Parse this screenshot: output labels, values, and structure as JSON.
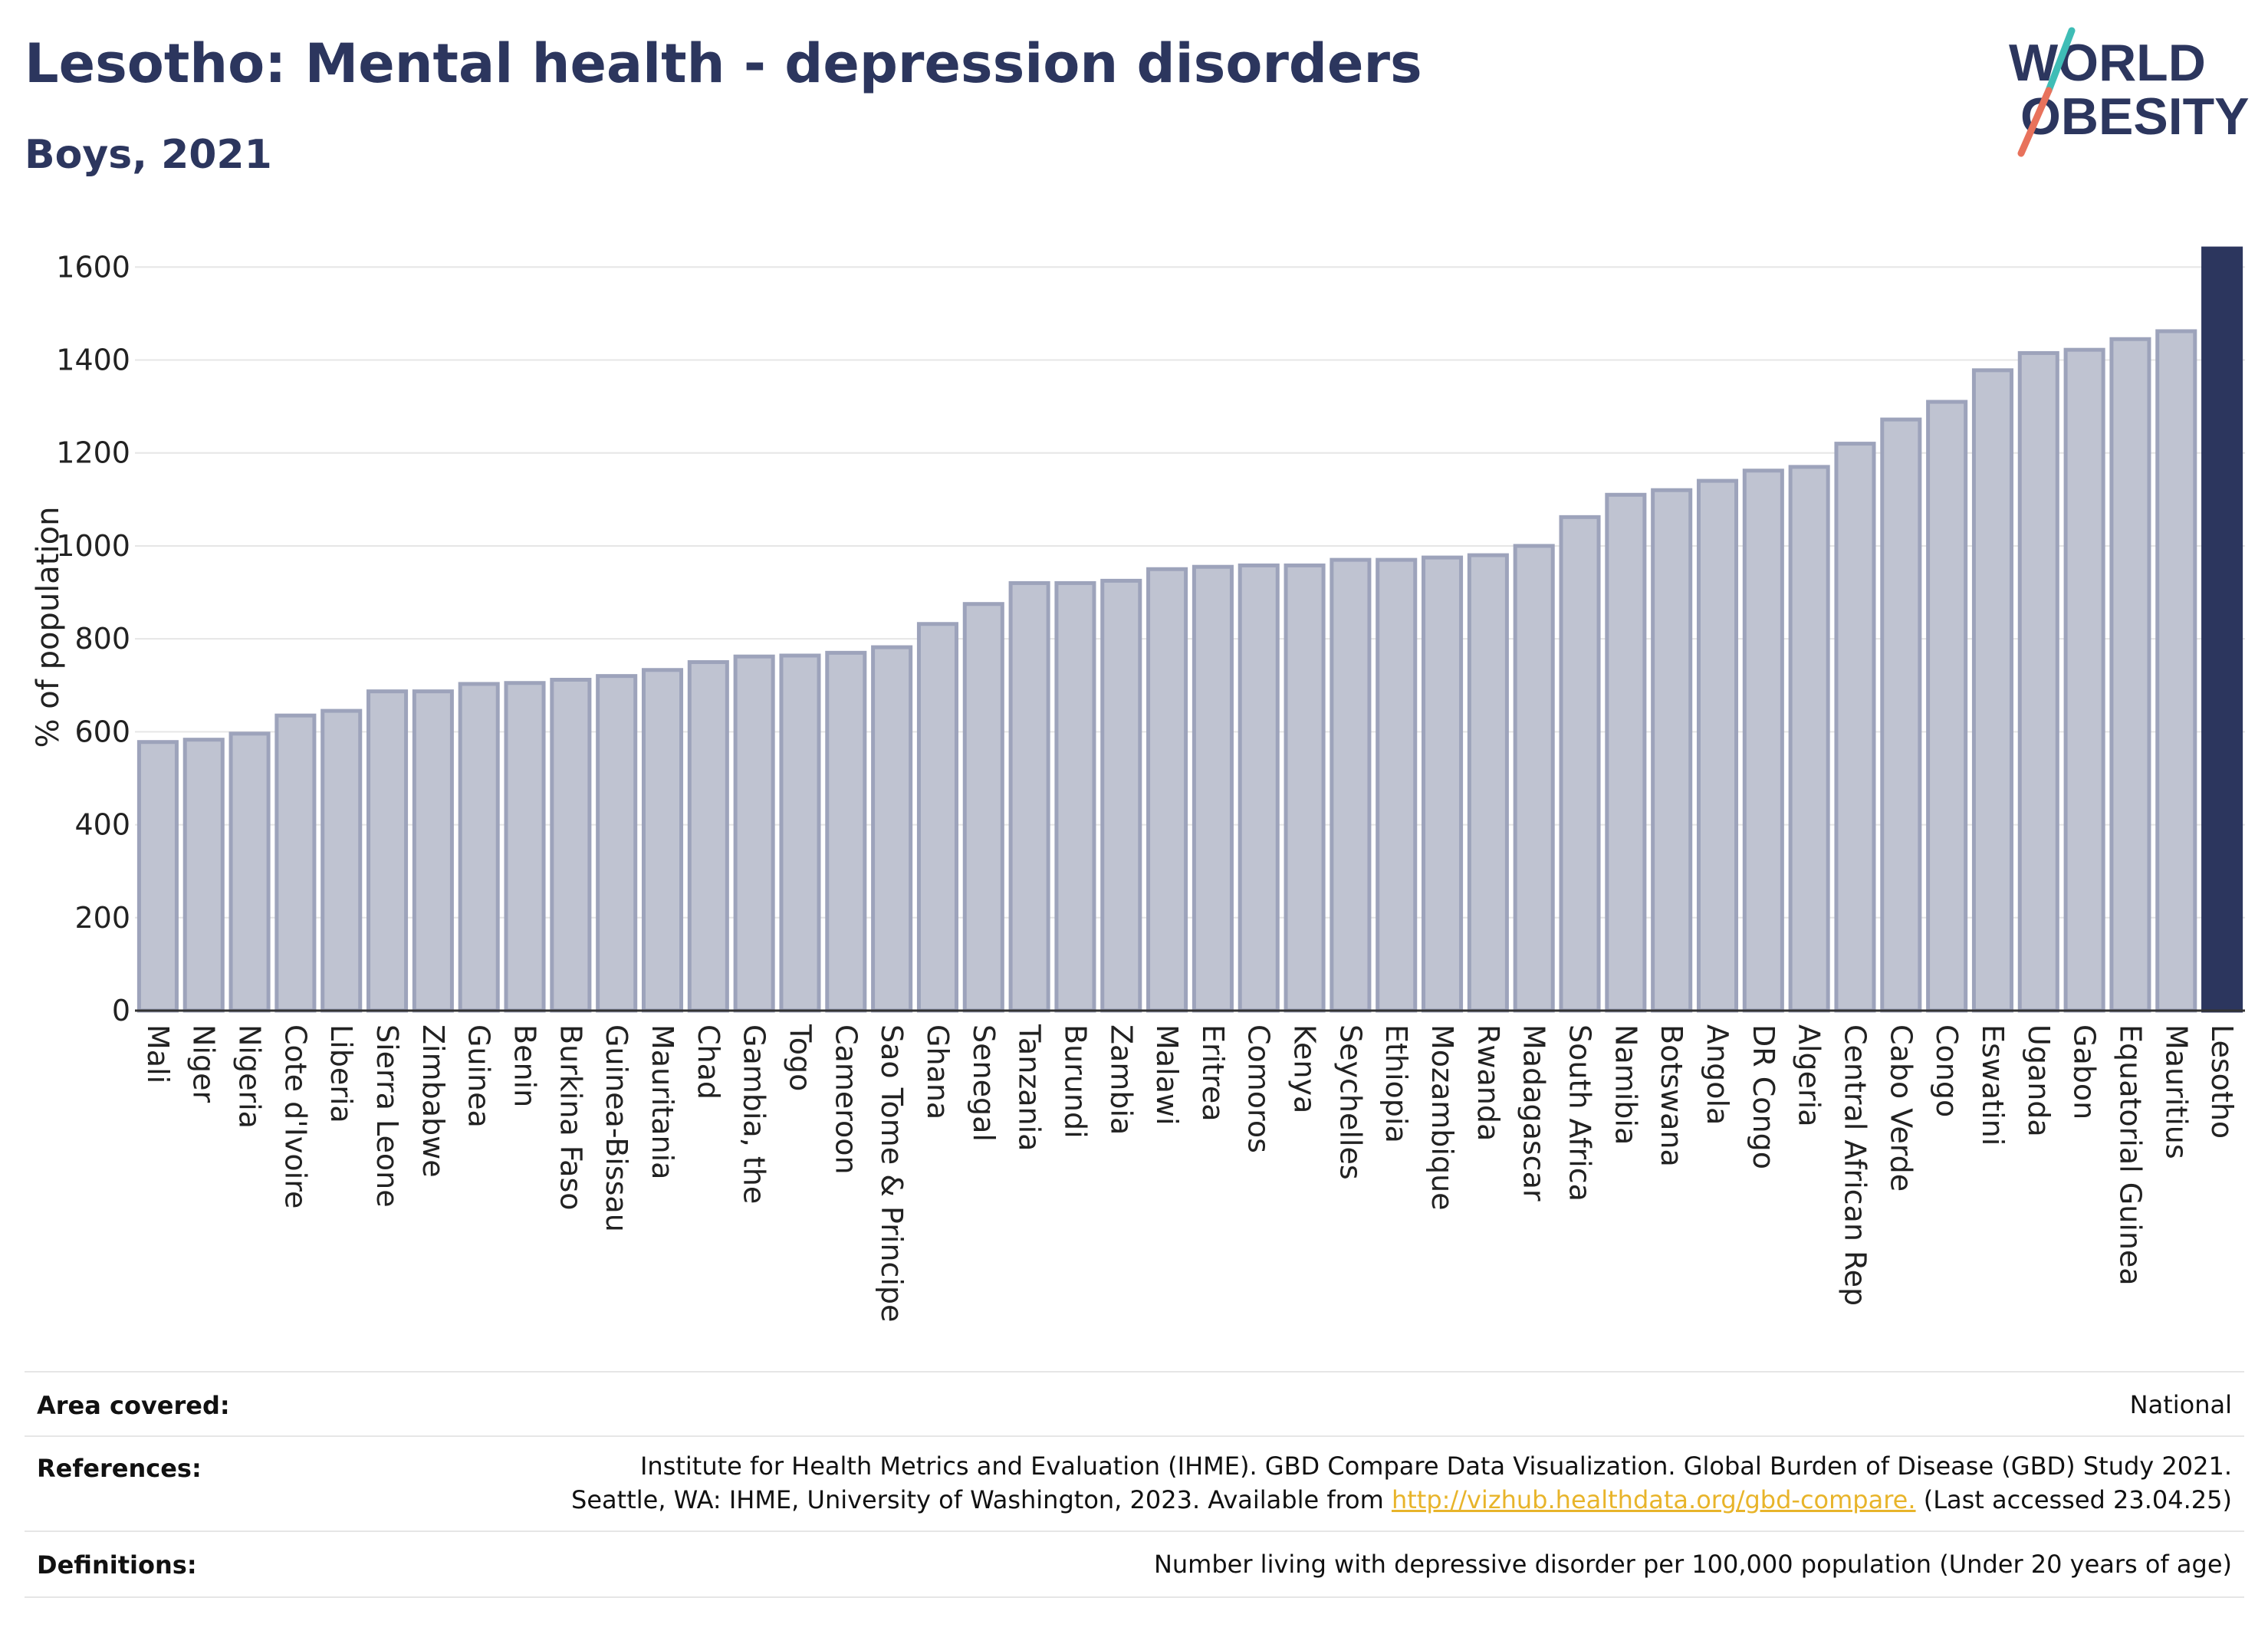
{
  "header": {
    "title": "Lesotho: Mental health - depression disorders",
    "subtitle": "Boys, 2021"
  },
  "logo": {
    "line1": "WORLD",
    "line2": "OBESITY"
  },
  "colors": {
    "bar": "#bfc3d1",
    "bar_stroke": "#9da3bb",
    "highlight": "#2c365e",
    "grid": "#e6e6e6",
    "logo_teal": "#3fbdb6",
    "logo_red": "#e8725c",
    "link": "#e8b42a"
  },
  "chart_data": {
    "type": "bar",
    "ylabel": "% of population",
    "ylim": [
      0,
      1650
    ],
    "yticks": [
      0,
      200,
      400,
      600,
      800,
      1000,
      1200,
      1400,
      1600
    ],
    "grid": true,
    "highlight": "Lesotho",
    "categories": [
      "Mali",
      "Niger",
      "Nigeria",
      "Cote d'Ivoire",
      "Liberia",
      "Sierra Leone",
      "Zimbabwe",
      "Guinea",
      "Benin",
      "Burkina Faso",
      "Guinea-Bissau",
      "Mauritania",
      "Chad",
      "Gambia, the",
      "Togo",
      "Cameroon",
      "Sao Tome & Principe",
      "Ghana",
      "Senegal",
      "Tanzania",
      "Burundi",
      "Zambia",
      "Malawi",
      "Eritrea",
      "Comoros",
      "Kenya",
      "Seychelles",
      "Ethiopia",
      "Mozambique",
      "Rwanda",
      "Madagascar",
      "South Africa",
      "Namibia",
      "Botswana",
      "Angola",
      "DR Congo",
      "Algeria",
      "Central African Rep",
      "Cabo Verde",
      "Congo",
      "Eswatini",
      "Uganda",
      "Gabon",
      "Equatorial Guinea",
      "Mauritius",
      "Lesotho"
    ],
    "values": [
      578,
      583,
      596,
      635,
      645,
      687,
      687,
      703,
      705,
      712,
      720,
      733,
      750,
      762,
      764,
      770,
      782,
      832,
      875,
      920,
      920,
      925,
      950,
      955,
      958,
      958,
      970,
      970,
      975,
      980,
      1000,
      1062,
      1110,
      1120,
      1140,
      1162,
      1170,
      1220,
      1272,
      1310,
      1378,
      1415,
      1422,
      1445,
      1462,
      1640
    ]
  },
  "info": {
    "area_label": "Area covered:",
    "area_value": "National",
    "references_label": "References:",
    "references_line1": "Institute for Health Metrics and Evaluation (IHME). GBD Compare Data Visualization. Global Burden of Disease (GBD) Study 2021.",
    "references_line2_pre": "Seattle, WA: IHME, University of Washington, 2023. Available from",
    "references_link": "http://vizhub.healthdata.org/gbd-compare.",
    "references_line2_post": "(Last accessed 23.04.25)",
    "definitions_label": "Definitions:",
    "definitions_value": "Number living with depressive disorder per 100,000 population (Under 20 years of age)"
  }
}
